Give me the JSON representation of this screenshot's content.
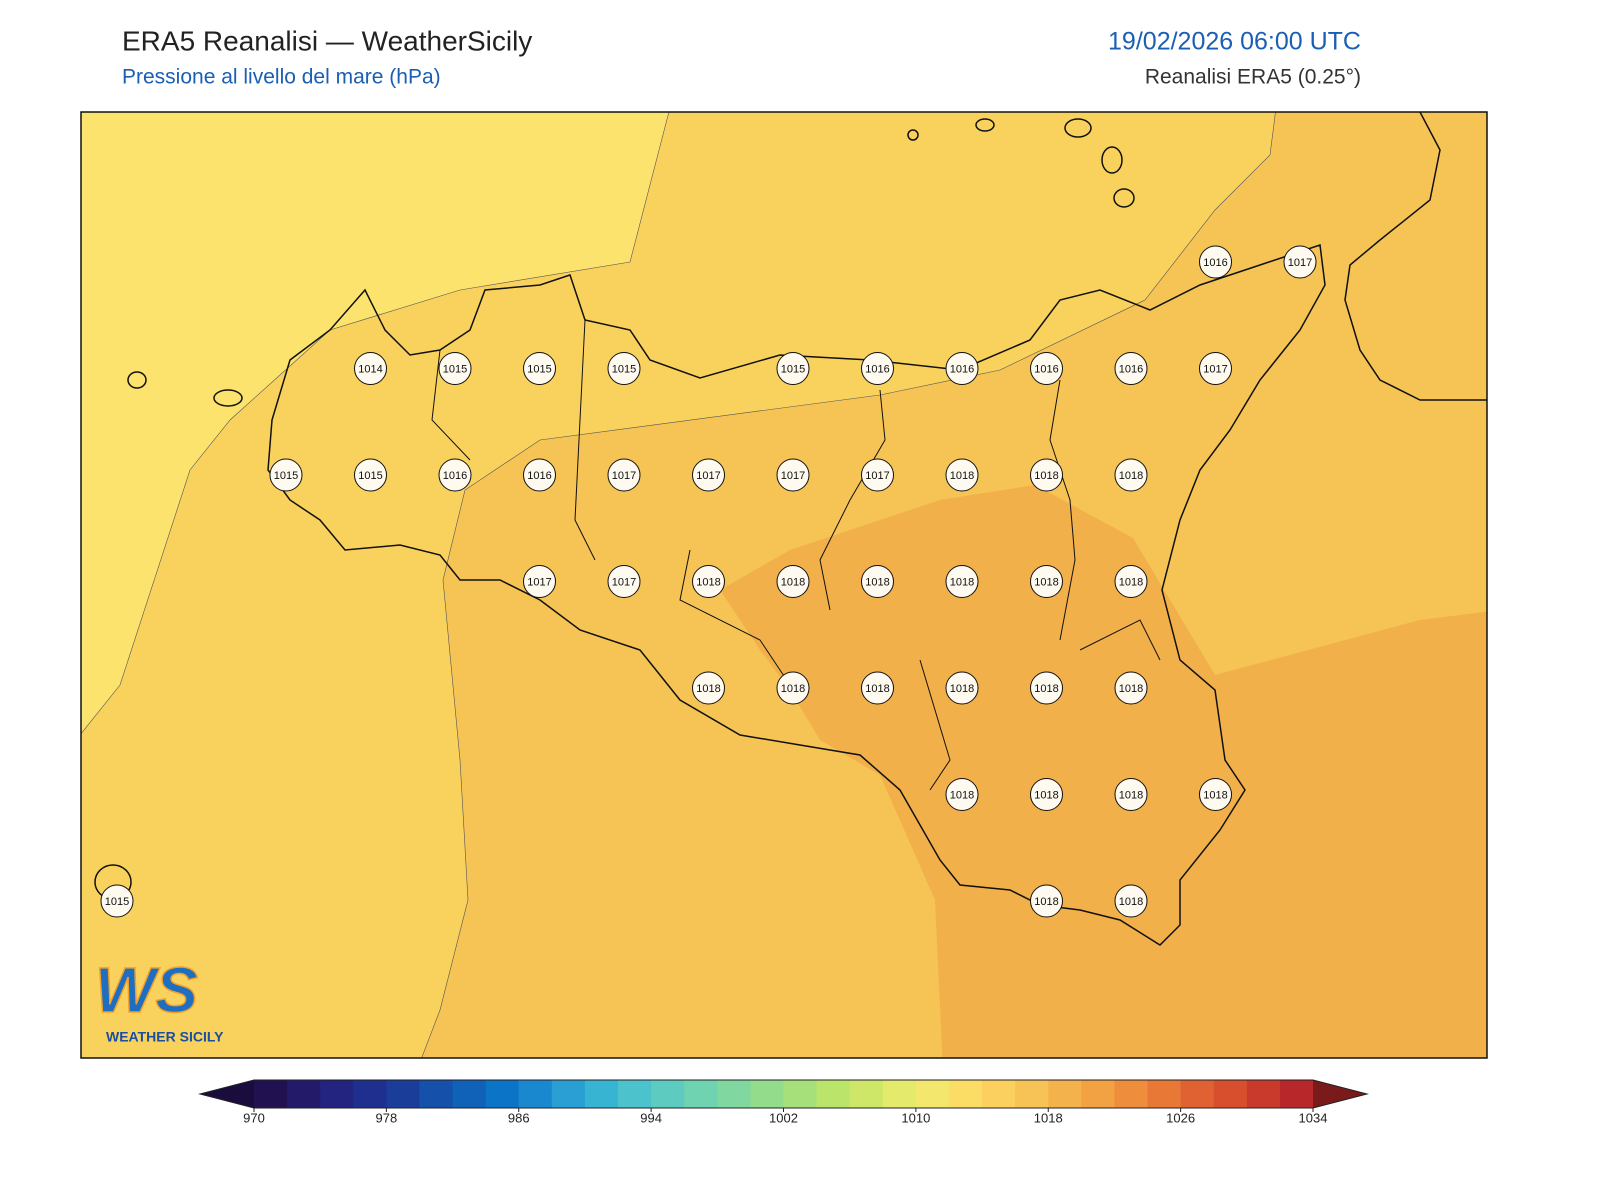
{
  "header": {
    "title": "ERA5 Reanalisi — WeatherSicily",
    "subtitle": "Pressione al livello del mare (hPa)",
    "datetime": "19/02/2026 06:00 UTC",
    "source": "Reanalisi ERA5 (0.25°)"
  },
  "grid": [
    [
      null,
      null,
      null,
      null,
      null,
      null,
      null,
      null,
      null,
      null,
      null,
      null,
      null,
      1016,
      1017
    ],
    [
      null,
      null,
      null,
      1014,
      1015,
      1015,
      1015,
      null,
      1015,
      1016,
      1016,
      1016,
      1016,
      1017,
      null
    ],
    [
      null,
      null,
      1015,
      1015,
      1016,
      1016,
      1017,
      1017,
      1017,
      1017,
      1018,
      1018,
      1018,
      null,
      null
    ],
    [
      null,
      null,
      null,
      null,
      null,
      1017,
      1017,
      1018,
      1018,
      1018,
      1018,
      1018,
      1018,
      null,
      null
    ],
    [
      null,
      null,
      null,
      null,
      null,
      null,
      null,
      1018,
      1018,
      1018,
      1018,
      1018,
      1018,
      null,
      null
    ],
    [
      null,
      null,
      null,
      null,
      null,
      null,
      null,
      null,
      null,
      null,
      1018,
      1018,
      1018,
      1018,
      null
    ],
    [
      1015,
      null,
      null,
      null,
      null,
      null,
      null,
      null,
      null,
      null,
      null,
      1018,
      1018,
      null,
      null
    ]
  ],
  "colorbar": {
    "range": [
      970,
      1034
    ],
    "ticks": [
      970,
      978,
      986,
      994,
      1002,
      1010,
      1018,
      1026,
      1034
    ],
    "colors": [
      "#221150",
      "#241a6a",
      "#232380",
      "#1f2f8f",
      "#1a3d9a",
      "#1550aa",
      "#0f62b8",
      "#0c74c6",
      "#1a88cf",
      "#2a9fd3",
      "#38b4d3",
      "#4cc3cc",
      "#5ecbc0",
      "#6fd2b0",
      "#80d8a0",
      "#92dc8c",
      "#a6e07a",
      "#bbe46a",
      "#cfe768",
      "#e3ea6c",
      "#f3e76e",
      "#fbdd65",
      "#fbd05e",
      "#f7c256",
      "#f4b24c",
      "#f2a143",
      "#ee8e3c",
      "#e87836",
      "#e06232",
      "#d84f2e",
      "#c93a2c",
      "#b8282a"
    ],
    "under": "#1a0c3c",
    "over": "#7a1a1a"
  },
  "logo": {
    "mark": "WS",
    "name": "WEATHER SICILY"
  }
}
